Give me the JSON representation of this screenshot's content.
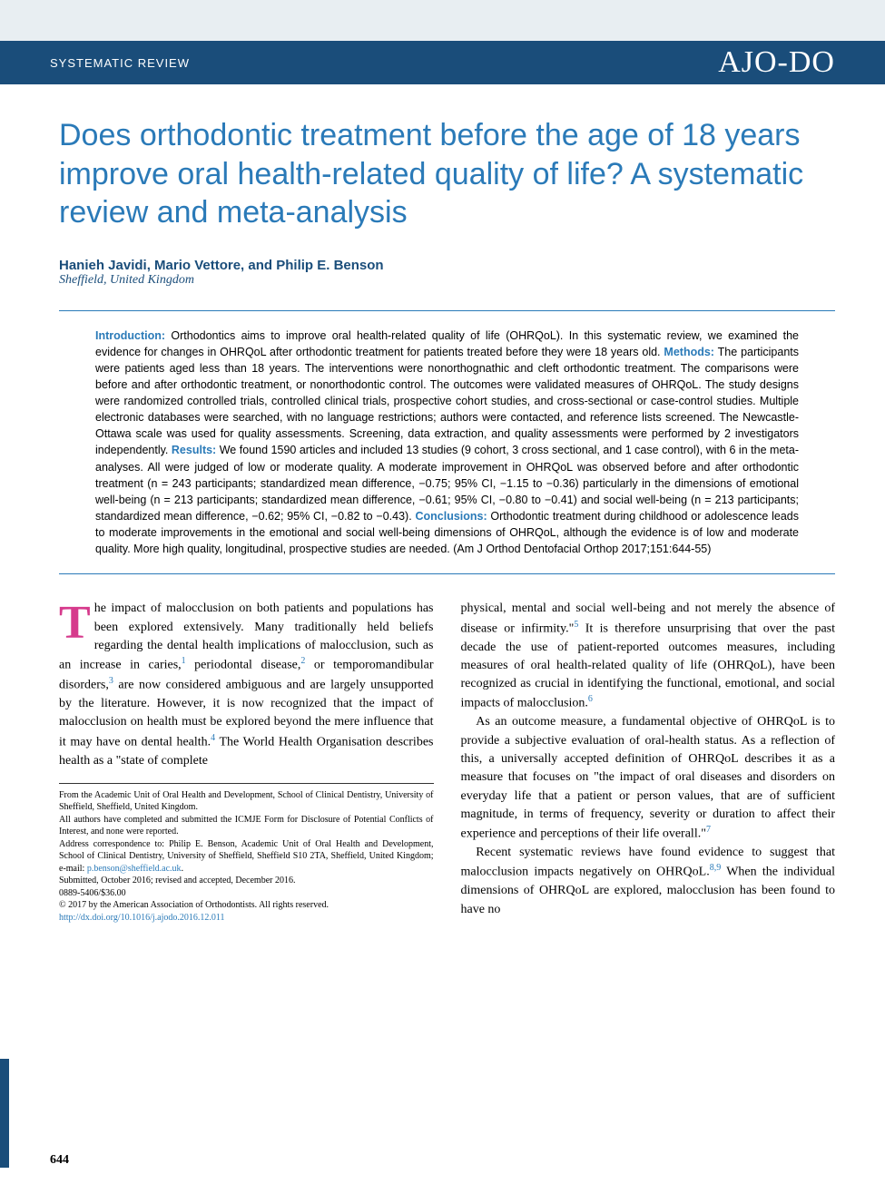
{
  "header": {
    "section_label": "SYSTEMATIC REVIEW",
    "journal_logo": "AJO-DO"
  },
  "title": "Does orthodontic treatment before the age of 18 years improve oral health-related quality of life? A systematic review and meta-analysis",
  "authors": "Hanieh Javidi, Mario Vettore, and Philip E. Benson",
  "affiliation": "Sheffield, United Kingdom",
  "abstract": {
    "intro_label": "Introduction:",
    "intro_text": " Orthodontics aims to improve oral health-related quality of life (OHRQoL). In this systematic review, we examined the evidence for changes in OHRQoL after orthodontic treatment for patients treated before they were 18 years old. ",
    "methods_label": "Methods:",
    "methods_text": " The participants were patients aged less than 18 years. The interventions were nonorthognathic and cleft orthodontic treatment. The comparisons were before and after orthodontic treatment, or nonorthodontic control. The outcomes were validated measures of OHRQoL. The study designs were randomized controlled trials, controlled clinical trials, prospective cohort studies, and cross-sectional or case-control studies. Multiple electronic databases were searched, with no language restrictions; authors were contacted, and reference lists screened. The Newcastle-Ottawa scale was used for quality assessments. Screening, data extraction, and quality assessments were performed by 2 investigators independently. ",
    "results_label": "Results:",
    "results_text": " We found 1590 articles and included 13 studies (9 cohort, 3 cross sectional, and 1 case control), with 6 in the meta-analyses. All were judged of low or moderate quality. A moderate improvement in OHRQoL was observed before and after orthodontic treatment (n = 243 participants; standardized mean difference, −0.75; 95% CI, −1.15 to −0.36) particularly in the dimensions of emotional well-being (n = 213 participants; standardized mean difference, −0.61; 95% CI, −0.80 to −0.41) and social well-being (n = 213 participants; standardized mean difference, −0.62; 95% CI, −0.82 to −0.43). ",
    "concl_label": "Conclusions:",
    "concl_text": " Orthodontic treatment during childhood or adolescence leads to moderate improvements in the emotional and social well-being dimensions of OHRQoL, although the evidence is of low and moderate quality. More high quality, longitudinal, prospective studies are needed. (Am J Orthod Dentofacial Orthop 2017;151:644-55)"
  },
  "body": {
    "left": {
      "p1_first": "T",
      "p1_rest": "he impact of malocclusion on both patients and populations has been explored extensively. Many traditionally held beliefs regarding the dental health implications of malocclusion, such as an increase in caries,",
      "p1_ref1": "1",
      "p1_mid1": " periodontal disease,",
      "p1_ref2": "2",
      "p1_mid2": " or temporomandibular disorders,",
      "p1_ref3": "3",
      "p1_mid3": " are now considered ambiguous and are largely unsupported by the literature. However, it is now recognized that the impact of malocclusion on health must be explored beyond the mere influence that it may have on dental health.",
      "p1_ref4": "4",
      "p1_end": " The World Health Organisation describes health as a \"state of complete"
    },
    "right": {
      "p1_a": "physical, mental and social well-being and not merely the absence of disease or infirmity.\"",
      "p1_ref5": "5",
      "p1_b": " It is therefore unsurprising that over the past decade the use of patient-reported outcomes measures, including measures of oral health-related quality of life (OHRQoL), have been recognized as crucial in identifying the functional, emotional, and social impacts of malocclusion.",
      "p1_ref6": "6",
      "p2_a": "As an outcome measure, a fundamental objective of OHRQoL is to provide a subjective evaluation of oral-health status. As a reflection of this, a universally accepted definition of OHRQoL describes it as a measure that focuses on \"the impact of oral diseases and disorders on everyday life that a patient or person values, that are of sufficient magnitude, in terms of frequency, severity or duration to affect their experience and perceptions of their life overall.\"",
      "p2_ref7": "7",
      "p3_a": "Recent systematic reviews have found evidence to suggest that malocclusion impacts negatively on OHRQoL.",
      "p3_ref89": "8,9",
      "p3_b": " When the individual dimensions of OHRQoL are explored, malocclusion has been found to have no"
    }
  },
  "footnotes": {
    "l1": "From the Academic Unit of Oral Health and Development, School of Clinical Dentistry, University of Sheffield, Sheffield, United Kingdom.",
    "l2": "All authors have completed and submitted the ICMJE Form for Disclosure of Potential Conflicts of Interest, and none were reported.",
    "l3a": "Address correspondence to: Philip E. Benson, Academic Unit of Oral Health and Development, School of Clinical Dentistry, University of Sheffield, Sheffield S10 2TA, Sheffield, United Kingdom; e-mail: ",
    "l3_email": "p.benson@sheffield.ac.uk",
    "l3b": ".",
    "l4": "Submitted, October 2016; revised and accepted, December 2016.",
    "l5": "0889-5406/$36.00",
    "l6": "© 2017 by the American Association of Orthodontists. All rights reserved.",
    "l7": "http://dx.doi.org/10.1016/j.ajodo.2016.12.011"
  },
  "page_number": "644",
  "colors": {
    "header_bg": "#1a4d7a",
    "accent_blue": "#2a7ab8",
    "dropcap": "#d63a8c",
    "top_band": "#e8eef2"
  }
}
